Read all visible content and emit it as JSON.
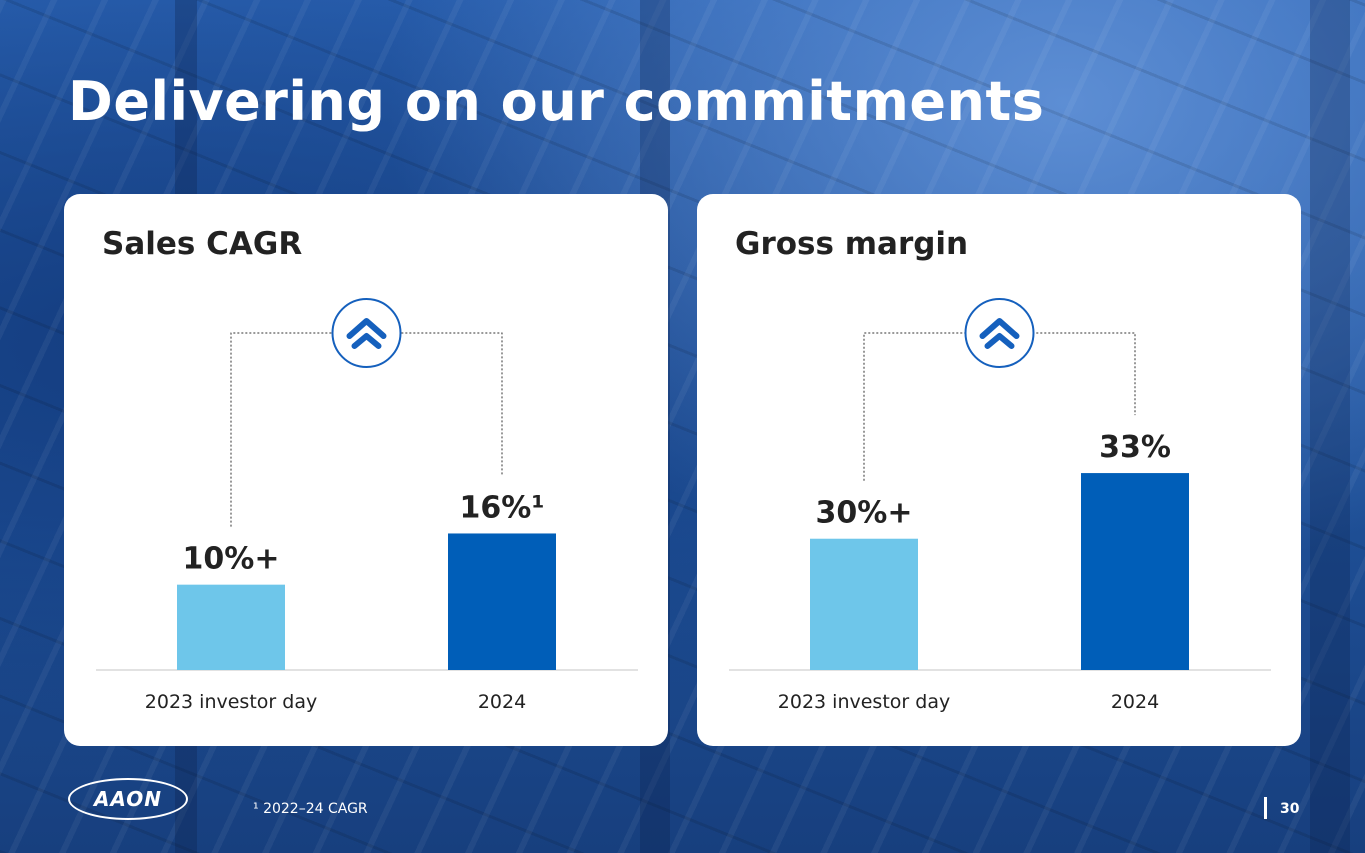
{
  "slide": {
    "title": "Delivering on our commitments",
    "logo_text": "AAON",
    "footnote": "¹ 2022–24 CAGR",
    "page_number": "30"
  },
  "colors": {
    "light_bar": "#6ec6ea",
    "dark_bar": "#005eb8",
    "value_text": "#222222",
    "card_bg": "#ffffff",
    "icon_stroke": "#1560bd"
  },
  "icons": {
    "increase_indicator": "double-chevron-up-icon"
  },
  "chart_data": [
    {
      "type": "bar",
      "title": "Sales CAGR",
      "categories": [
        "2023 investor day",
        "2024"
      ],
      "values": [
        10,
        16
      ],
      "value_labels": [
        "10%+",
        "16%¹"
      ],
      "ylim": [
        0,
        30
      ],
      "grid": false,
      "bar_colors": [
        "#6ec6ea",
        "#005eb8"
      ]
    },
    {
      "type": "bar",
      "title": "Gross margin",
      "categories": [
        "2023 investor day",
        "2024"
      ],
      "values": [
        30,
        33
      ],
      "value_labels": [
        "30%+",
        "33%"
      ],
      "ylim": [
        24,
        35.7
      ],
      "grid": false,
      "bar_colors": [
        "#6ec6ea",
        "#005eb8"
      ]
    }
  ]
}
